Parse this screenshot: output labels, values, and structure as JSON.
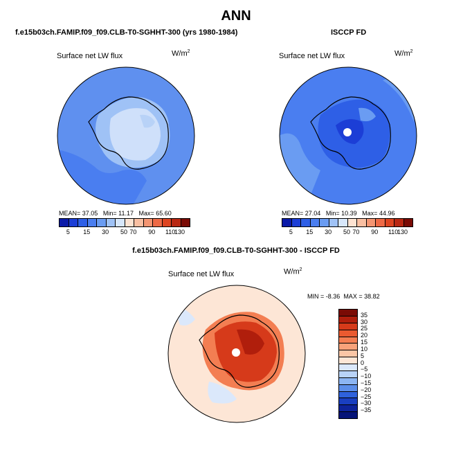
{
  "chart_data": [
    {
      "type": "heatmap",
      "title": "f.e15b03ch.FAMIP.f09_f09.CLB-T0-SGHHT-300 (yrs 1980-1984)",
      "label": "Surface net LW flux",
      "units": "W/m",
      "units_sup": "2",
      "stats": {
        "mean_label": "MEAN=",
        "mean": "37.05",
        "min_label": "Min=",
        "min": "11.17",
        "max_label": "Max=",
        "max": "65.60"
      },
      "colorbar_ticks": [
        "5",
        "15",
        "30",
        "50",
        "70",
        "90",
        "110",
        "130"
      ],
      "colorbar_colors": [
        "#0a1aa8",
        "#1c3ed6",
        "#2e5fe6",
        "#4a7ef0",
        "#6a9cf2",
        "#9fc2f6",
        "#d7e7fb",
        "#fde3d2",
        "#f9bfa2",
        "#f49572",
        "#ee6a46",
        "#dd4420",
        "#b82712",
        "#7a0b05"
      ]
    },
    {
      "type": "heatmap",
      "title": "ISCCP FD",
      "label": "Surface net LW flux",
      "units": "W/m",
      "units_sup": "2",
      "stats": {
        "mean_label": "MEAN=",
        "mean": "27.04",
        "min_label": "Min=",
        "min": "10.39",
        "max_label": "Max=",
        "max": "44.96"
      },
      "colorbar_ticks": [
        "5",
        "15",
        "30",
        "50",
        "70",
        "90",
        "110",
        "130"
      ],
      "colorbar_colors": [
        "#0a1aa8",
        "#1c3ed6",
        "#2e5fe6",
        "#4a7ef0",
        "#6a9cf2",
        "#9fc2f6",
        "#d7e7fb",
        "#fde3d2",
        "#f9bfa2",
        "#f49572",
        "#ee6a46",
        "#dd4420",
        "#b82712",
        "#7a0b05"
      ]
    },
    {
      "type": "heatmap",
      "title": "f.e15b03ch.FAMIP.f09_f09.CLB-T0-SGHHT-300 - ISCCP FD",
      "label": "Surface net LW flux",
      "units": "W/m",
      "units_sup": "2",
      "stats": {
        "min_label": "MIN =",
        "min": "-8.36",
        "max_label": "MAX =",
        "max": "38.82"
      },
      "colorbar_ticks": [
        "35",
        "30",
        "25",
        "20",
        "15",
        "10",
        "5",
        "0",
        "−5",
        "−10",
        "−15",
        "−20",
        "−25",
        "−30",
        "−35"
      ],
      "colorbar_colors": [
        "#7a0b05",
        "#b01e0c",
        "#d63a1a",
        "#ea5a30",
        "#f37e52",
        "#f8a27a",
        "#fbc6a6",
        "#fde6d6",
        "#dbe8fb",
        "#b9d3f7",
        "#8cb5f2",
        "#5c8ee9",
        "#2f62dc",
        "#1a3fc0",
        "#0e239a",
        "#061478"
      ]
    }
  ],
  "page_title": "ANN"
}
